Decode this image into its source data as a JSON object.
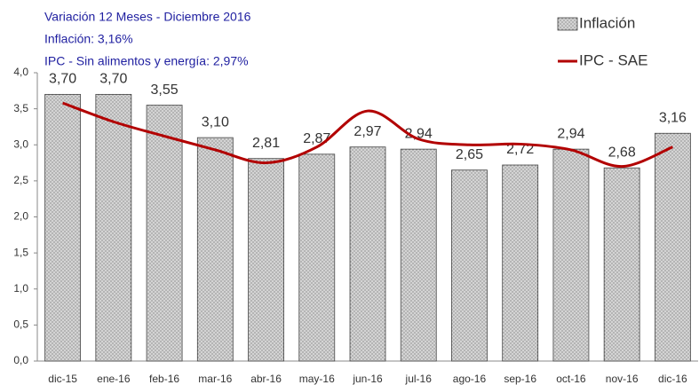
{
  "chart_data": {
    "type": "bar_line",
    "title": "Variación 12 Meses - Diciembre 2016",
    "annotations": [
      "Inflación: 3,16%",
      "IPC - Sin alimentos y energía: 2,97%"
    ],
    "categories": [
      "dic-15",
      "ene-16",
      "feb-16",
      "mar-16",
      "abr-16",
      "may-16",
      "jun-16",
      "jul-16",
      "ago-16",
      "sep-16",
      "oct-16",
      "nov-16",
      "dic-16"
    ],
    "series": [
      {
        "name": "Inflación",
        "type": "bar",
        "color": "#d4d4d4",
        "values": [
          3.7,
          3.7,
          3.55,
          3.1,
          2.81,
          2.87,
          2.97,
          2.94,
          2.65,
          2.72,
          2.94,
          2.68,
          3.16
        ],
        "value_labels": [
          "3,70",
          "3,70",
          "3,55",
          "3,10",
          "2,81",
          "2,87",
          "2,97",
          "2,94",
          "2,65",
          "2,72",
          "2,94",
          "2,68",
          "3,16"
        ]
      },
      {
        "name": "IPC - SAE",
        "type": "line",
        "color": "#b20000",
        "values": [
          3.58,
          3.32,
          3.12,
          2.93,
          2.75,
          2.97,
          3.47,
          3.08,
          3.0,
          3.01,
          2.93,
          2.7,
          2.97
        ]
      }
    ],
    "ylim": [
      0,
      4
    ],
    "yticks": [
      {
        "value": 0,
        "label": "0,0"
      },
      {
        "value": 0.5,
        "label": "0,5"
      },
      {
        "value": 1,
        "label": "1,0"
      },
      {
        "value": 1.5,
        "label": "1,5"
      },
      {
        "value": 2,
        "label": "2,0"
      },
      {
        "value": 2.5,
        "label": "2,5"
      },
      {
        "value": 3,
        "label": "3,0"
      },
      {
        "value": 3.5,
        "label": "3,5"
      },
      {
        "value": 4,
        "label": "4,0"
      }
    ],
    "legend": "top-right"
  }
}
